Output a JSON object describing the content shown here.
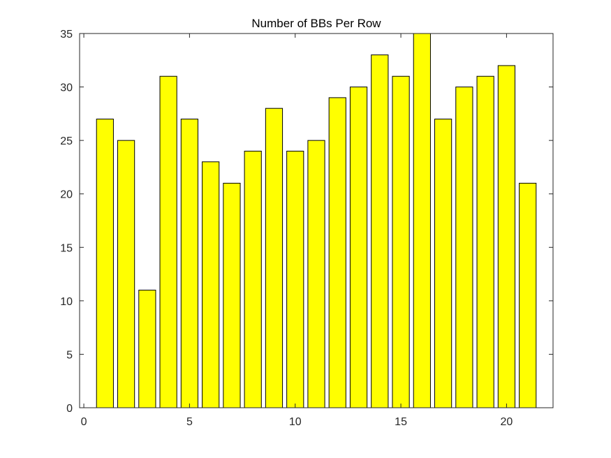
{
  "chart_data": {
    "type": "bar",
    "title": "Number of BBs Per Row",
    "xlabel": "",
    "ylabel": "",
    "x": [
      1,
      2,
      3,
      4,
      5,
      6,
      7,
      8,
      9,
      10,
      11,
      12,
      13,
      14,
      15,
      16,
      17,
      18,
      19,
      20,
      21
    ],
    "values": [
      27,
      25,
      11,
      31,
      27,
      23,
      21,
      24,
      28,
      24,
      25,
      29,
      30,
      33,
      31,
      35,
      27,
      30,
      31,
      32,
      21
    ],
    "xlim": [
      -0.2,
      22.2
    ],
    "ylim": [
      0,
      35
    ],
    "xticks": [
      0,
      5,
      10,
      15,
      20
    ],
    "yticks": [
      0,
      5,
      10,
      15,
      20,
      25,
      30,
      35
    ],
    "bar_width": 0.8,
    "grid": false,
    "bar_color": "#FFFF00",
    "edge_color": "#000000"
  }
}
